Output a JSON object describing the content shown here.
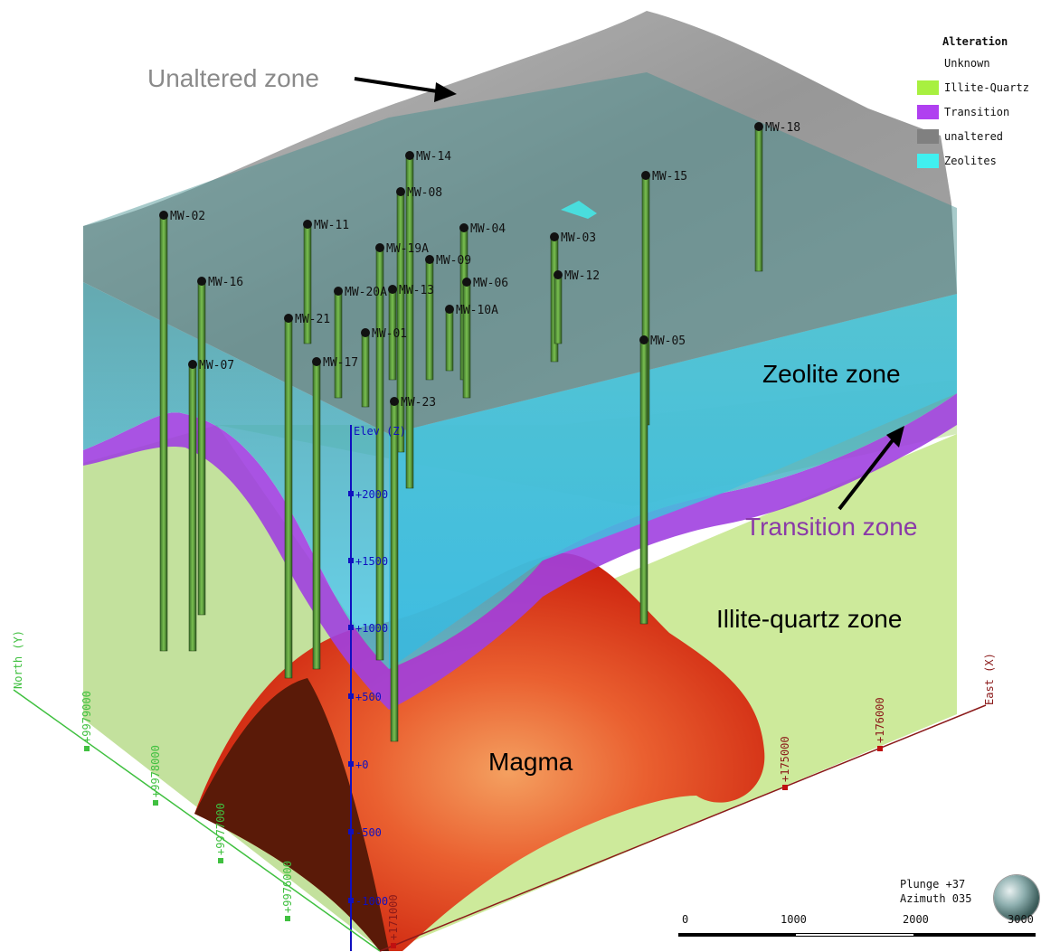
{
  "annotations": {
    "unaltered": "Unaltered zone",
    "zeolite": "Zeolite zone",
    "transition": "Transition zone",
    "illite": "Illite-quartz zone",
    "magma": "Magma"
  },
  "legend": {
    "title": "Alteration",
    "items": [
      {
        "label": "Unknown",
        "color": "#ffffff"
      },
      {
        "label": "Illite-Quartz",
        "color": "#a8f040"
      },
      {
        "label": "Transition",
        "color": "#b040f0"
      },
      {
        "label": "unaltered",
        "color": "#808080"
      },
      {
        "label": "Zeolites",
        "color": "#40f0f0"
      }
    ]
  },
  "wells": [
    "MW-02",
    "MW-14",
    "MW-08",
    "MW-18",
    "MW-15",
    "MW-11",
    "MW-04",
    "MW-03",
    "MW-19A",
    "MW-09",
    "MW-12",
    "MW-06",
    "MW-16",
    "MW-20A",
    "MW-13",
    "MW-10A",
    "MW-21",
    "MW-01",
    "MW-05",
    "MW-07",
    "MW-17",
    "MW-23"
  ],
  "axes": {
    "elev": {
      "label": "Elev (Z)",
      "ticks": [
        "+2000",
        "+1500",
        "+1000",
        "+500",
        "+0",
        "-500",
        "-1000"
      ]
    },
    "north": {
      "label": "North (Y)",
      "ticks": [
        "+9979000",
        "+9978000",
        "+9977000",
        "+9976000"
      ]
    },
    "east": {
      "label": "East (X)",
      "ticks": [
        "+171000",
        "+175000",
        "+176000"
      ]
    }
  },
  "view": {
    "plunge": "Plunge +37",
    "azimuth": "Azimuth 035"
  },
  "scale": {
    "ticks": [
      "0",
      "1000",
      "2000",
      "3000"
    ]
  },
  "colors": {
    "zeolite": "#38c8e8",
    "transition": "#a040e0",
    "illite": "#c8e890",
    "magma": "#e02010",
    "unaltered": "#909090",
    "north_axis": "#40c040",
    "east_axis": "#8b1a1a",
    "elev_axis": "#1010c0"
  }
}
